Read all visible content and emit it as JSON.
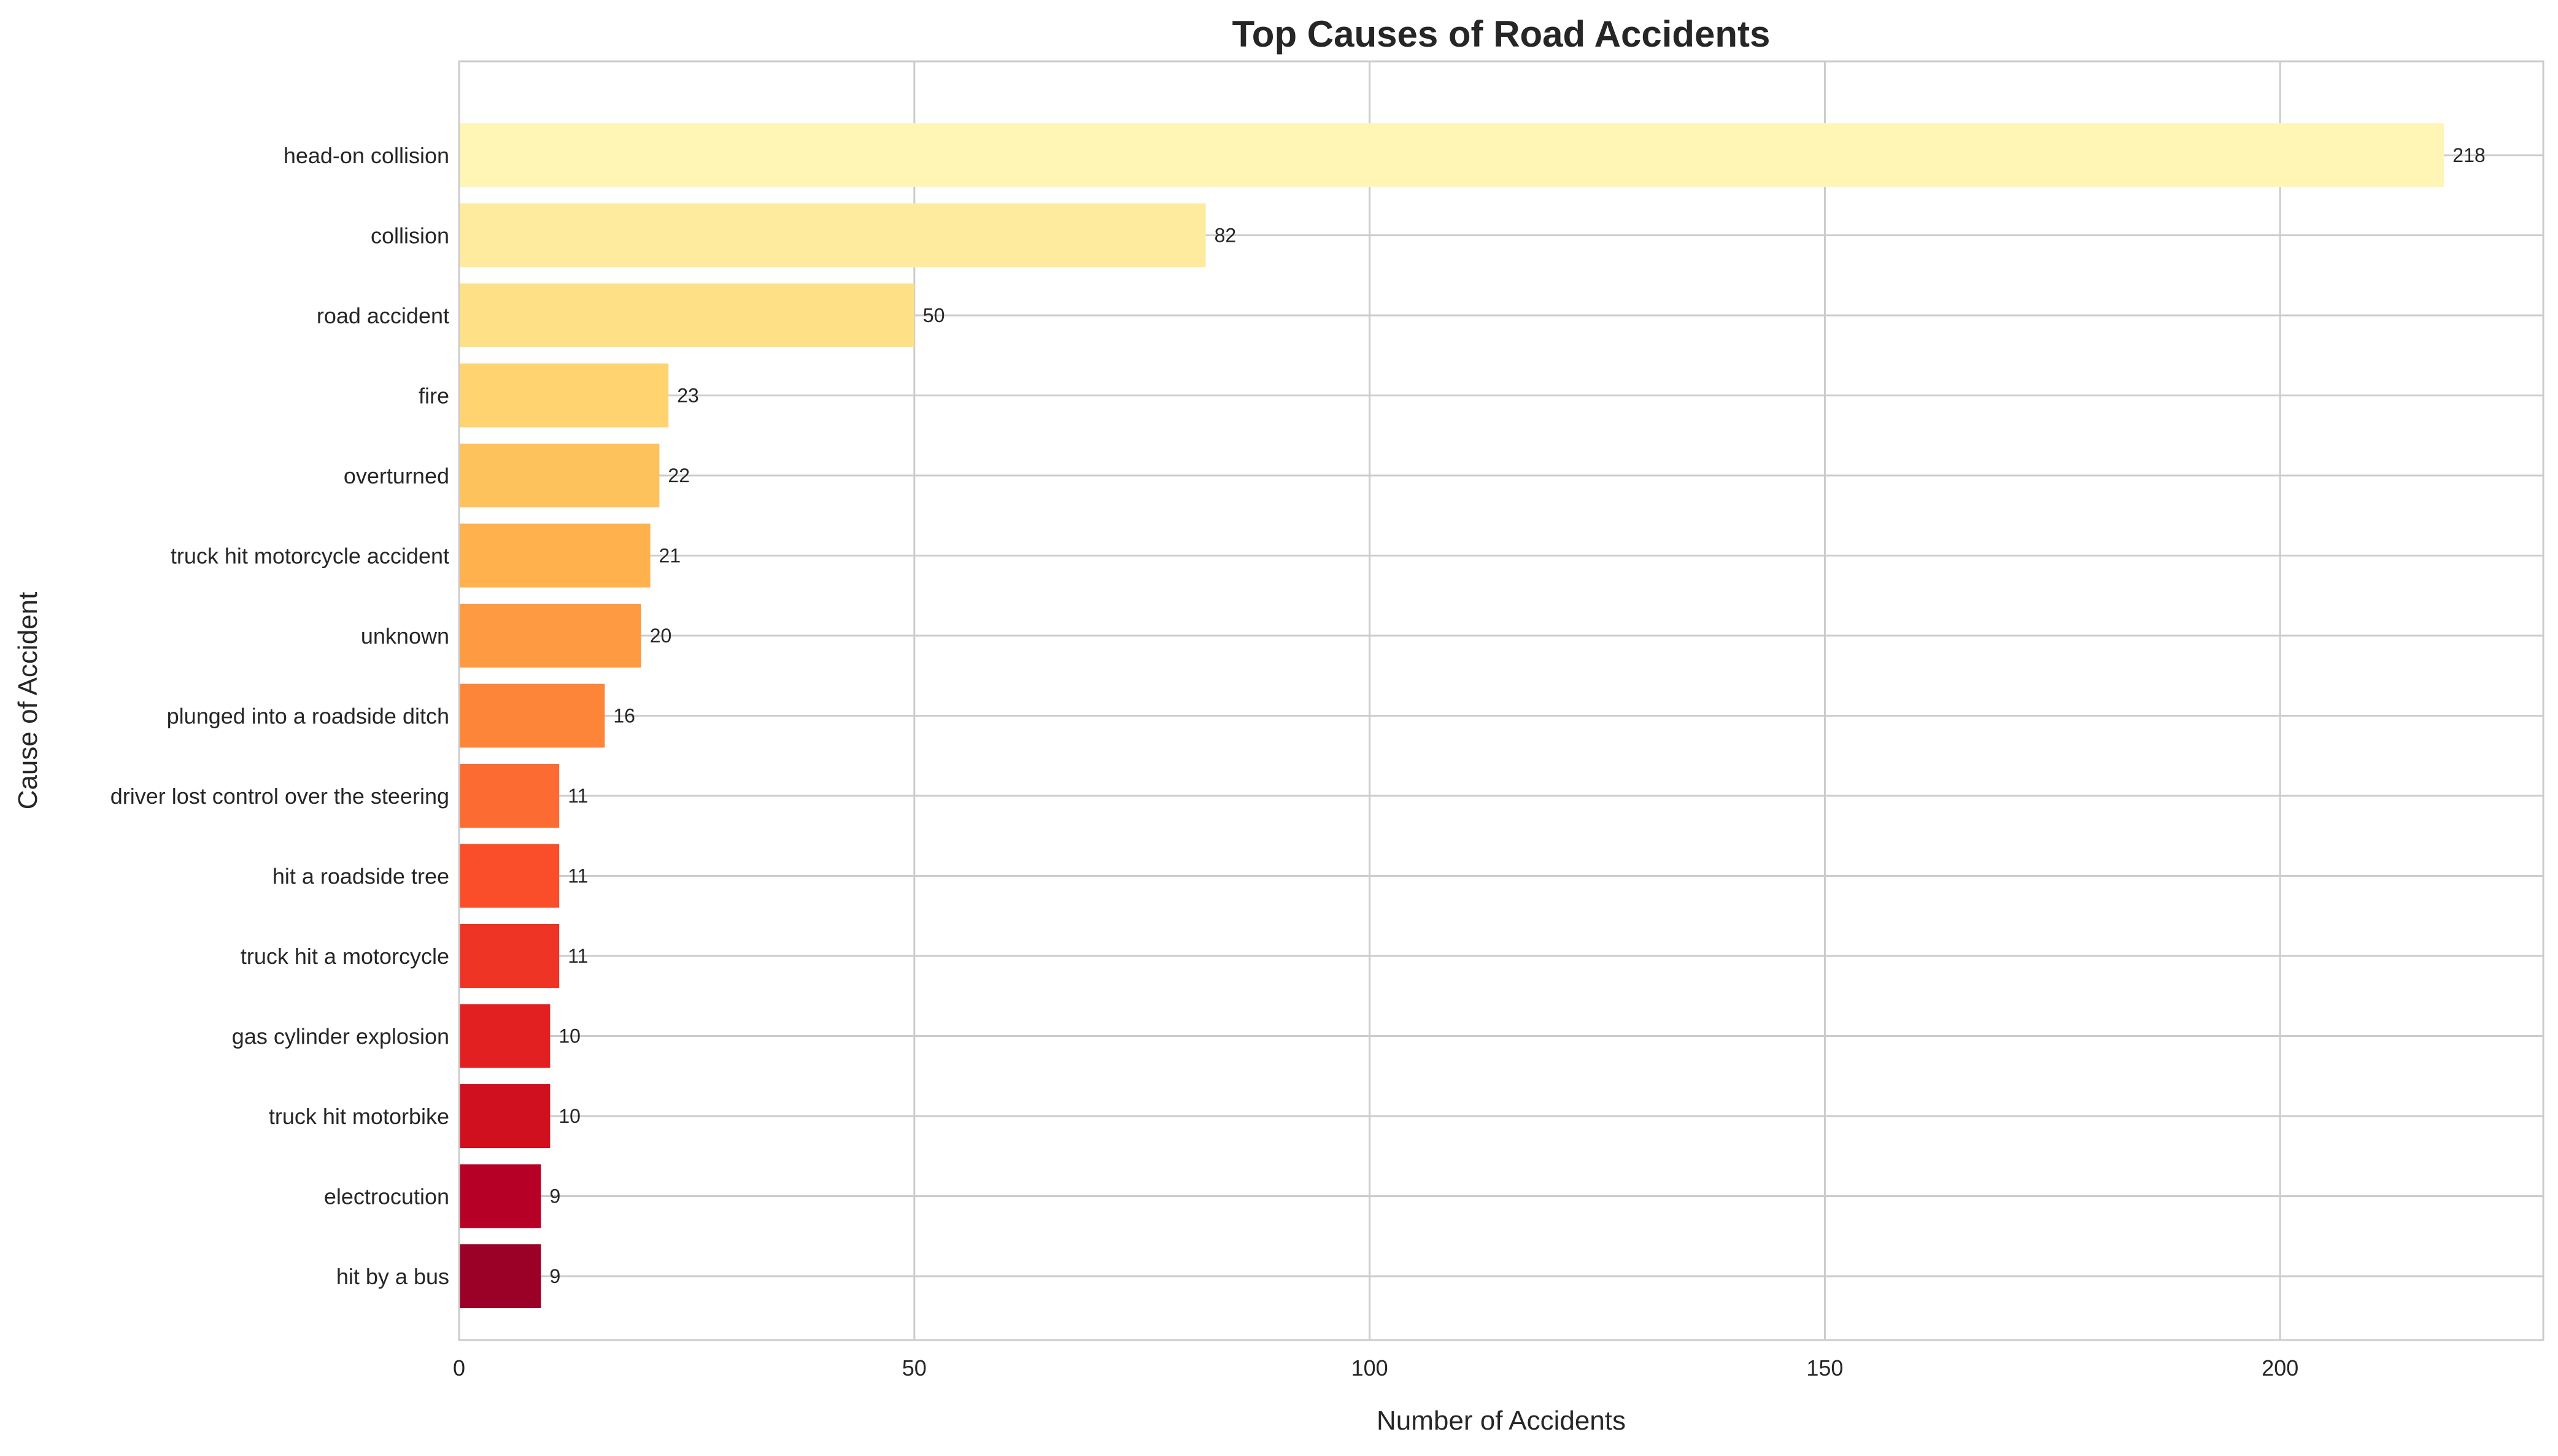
{
  "chart_data": {
    "type": "bar",
    "orientation": "horizontal",
    "title": "Top Causes of Road Accidents",
    "xlabel": "Number of Accidents",
    "ylabel": "Cause of Accident",
    "xlim": [
      0,
      228.9
    ],
    "xticks": [
      0,
      50,
      100,
      150,
      200
    ],
    "grid": true,
    "categories": [
      "head-on collision",
      "collision",
      "road accident",
      "fire",
      "overturned",
      "truck hit motorcycle accident",
      "unknown",
      "plunged into a roadside ditch",
      "driver lost control over the steering",
      "hit a roadside tree",
      "truck hit a motorcycle",
      "gas cylinder explosion",
      "truck hit motorbike",
      "electrocution",
      "hit by a bus"
    ],
    "values": [
      218,
      82,
      50,
      23,
      22,
      21,
      20,
      16,
      11,
      11,
      11,
      10,
      10,
      9,
      9
    ],
    "colors": [
      "#fff5b5",
      "#ffeb9d",
      "#fee187",
      "#fed370",
      "#fec25c",
      "#feb14c",
      "#fd9a42",
      "#fd853a",
      "#fc6b32",
      "#fa4d2a",
      "#ee3424",
      "#e21f21",
      "#d0101f",
      "#b70026",
      "#9b0026"
    ]
  }
}
